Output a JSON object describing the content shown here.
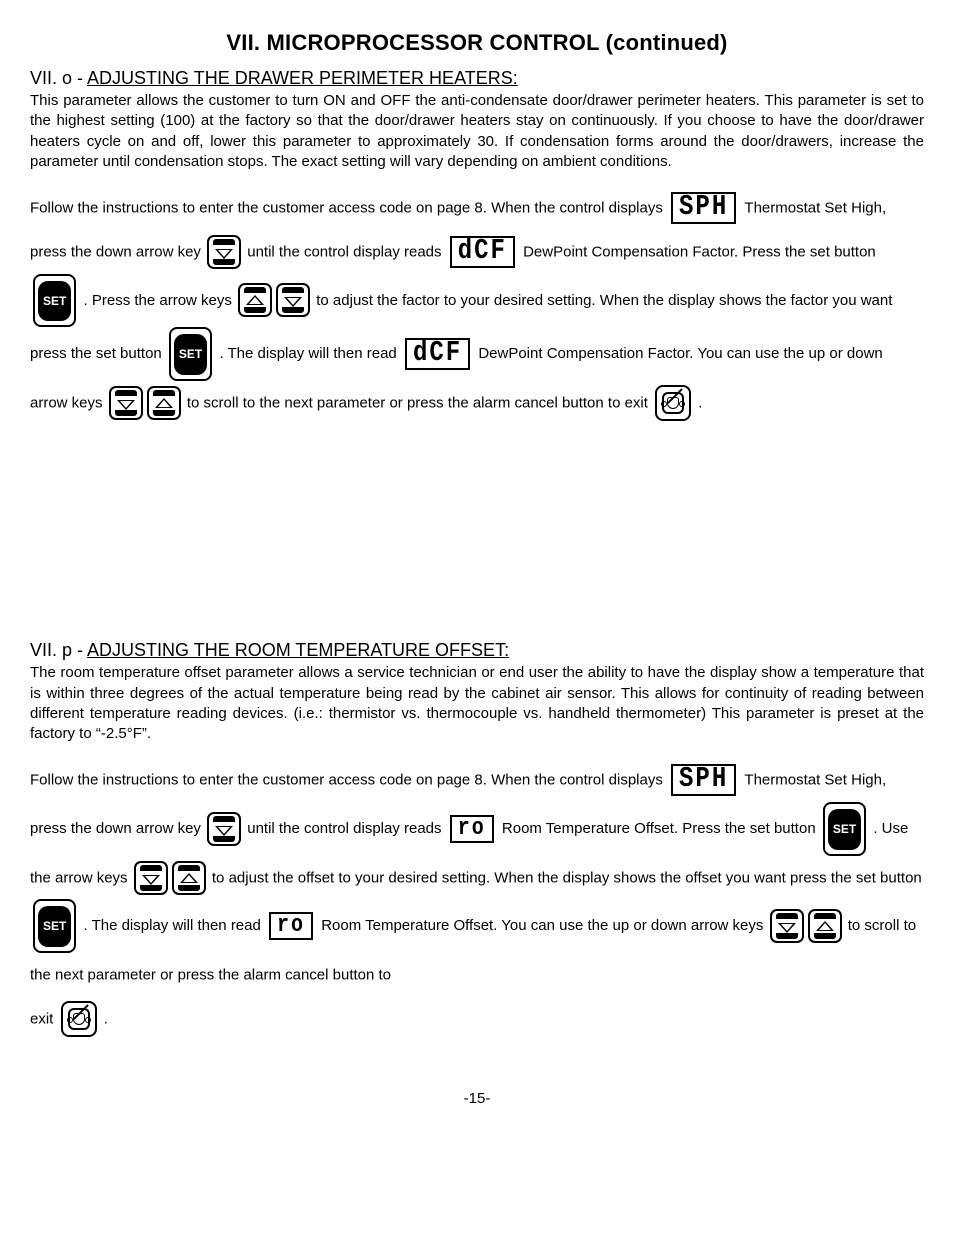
{
  "title": "VII. MICROPROCESSOR CONTROL (continued)",
  "sec_o": {
    "prefix": "VII. o - ",
    "heading": "ADJUSTING THE DRAWER PERIMETER HEATERS:",
    "para": "This parameter allows the customer to turn ON and OFF the anti-condensate door/drawer perimeter heaters. This parameter is set to the highest setting (100) at the factory so that the door/drawer heaters stay on continuously. If you choose to have the door/drawer heaters cycle on and off, lower this parameter to approximately 30.  If condensation forms around the door/drawers, increase the parameter until condensation stops. The exact setting will vary depending on ambient conditions.",
    "t1": "Follow the instructions to enter the customer access code on page 8.  When the control displays ",
    "t2": "Thermostat Set High, press the down arrow key ",
    "t3": " until the control display reads ",
    "t4": "DewPoint Compensation Factor.  Press the set button ",
    "t5": " .   Press the arrow keys ",
    "t6": " to adjust the factor to your desired setting.   When the display shows the factor you want press the set button ",
    "t7": " .   The display will then read ",
    "t8": " DewPoint Compensation Factor.   You can use the up or down arrow keys ",
    "t9": " to scroll to the next parameter or press the alarm cancel button to exit ",
    "t10": " .",
    "lcd_sph": "SPH",
    "lcd_dcf": "dCF",
    "set_label": "SET"
  },
  "sec_p": {
    "prefix": "VII. p - ",
    "heading": "ADJUSTING THE ROOM TEMPERATURE OFFSET:",
    "para": "The room temperature offset parameter allows a service technician or end user the ability to have the display show a temperature that is within three degrees of the actual temperature being read by the cabinet air sensor.  This allows for continuity of reading between different temperature reading devices. (i.e.: thermistor vs. thermocouple vs. handheld thermometer) This parameter is preset at the factory to “-2.5°F”.",
    "t1": "Follow the instructions to enter the customer access code on page 8.  When the control displays ",
    "t2": "Thermostat Set High, press the down arrow key ",
    "t3": " until  the control display reads ",
    "t4": "Room Temperature Offset. Press the set button ",
    "t5": " .    Use the arrow keys ",
    "t6": " to adjust the offset to your desired setting.  When the display shows the offset you want press the set button ",
    "t7": " .   The display will then read ",
    "t8": " Room Temperature Offset.  You can use the up or down arrow keys ",
    "t9": " to scroll to the next parameter or press the alarm cancel button to",
    "t10": "exit ",
    "t11": " .",
    "lcd_sph": "SPH",
    "lcd_ro": "ro",
    "set_label": "SET"
  },
  "page_number": "-15-"
}
